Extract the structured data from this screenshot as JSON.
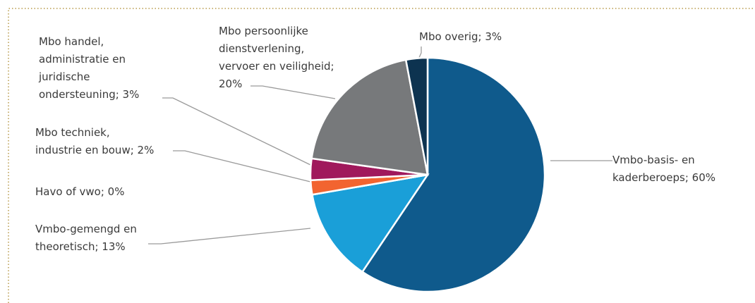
{
  "chart_data": {
    "type": "pie",
    "categories": [
      "Vmbo-basis- en kaderberoeps",
      "Vmbo-gemengd en theoretisch",
      "Havo of vwo",
      "Mbo techniek, industrie en bouw",
      "Mbo handel, administratie en juridische ondersteuning",
      "Mbo persoonlijke dienstverlening, vervoer en veiligheid",
      "Mbo overig"
    ],
    "values": [
      60,
      13,
      0,
      2,
      3,
      20,
      3
    ],
    "value_labels": [
      "Vmbo-basis- en kaderberoeps; 60%",
      "Vmbo-gemengd en theoretisch; 13%",
      "Havo of vwo; 0%",
      "Mbo techniek, industrie en bouw; 2%",
      "Mbo handel, administratie en juridische ondersteuning; 3%",
      "Mbo persoonlijke dienstverlening, vervoer en veiligheid; 20%",
      "Mbo overig; 3%"
    ],
    "colors": [
      "#0f5a8c",
      "#1a9fd8",
      "#2e7d4f",
      "#f26430",
      "#a0195c",
      "#77797b",
      "#0d3350"
    ]
  }
}
